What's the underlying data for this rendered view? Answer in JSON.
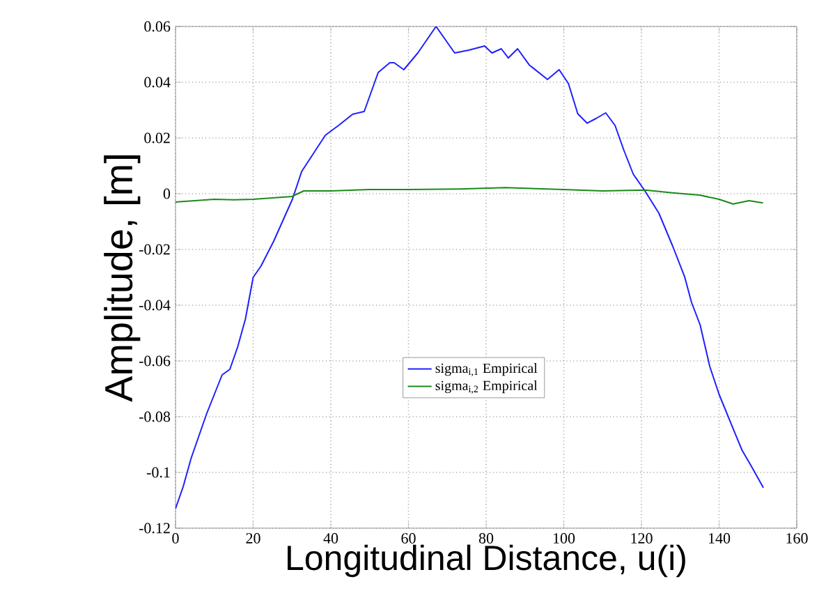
{
  "chart_data": {
    "type": "line",
    "xlabel": "Longitudinal Distance, u(i)",
    "ylabel": "Amplitude, [m]",
    "xlim": [
      0,
      160
    ],
    "ylim": [
      -0.12,
      0.06
    ],
    "xticks": [
      0,
      20,
      40,
      60,
      80,
      100,
      120,
      140,
      160
    ],
    "yticks": [
      -0.12,
      -0.1,
      -0.08,
      -0.06,
      -0.04,
      -0.02,
      0,
      0.02,
      0.04,
      0.06
    ],
    "grid": true,
    "legend": "center",
    "line_style": "solid",
    "marker": "none",
    "series": [
      {
        "name": "sigma$_{i,1}$ Empirical",
        "color": "#1f1fff",
        "x": [
          0,
          2,
          4,
          6,
          8,
          10,
          12,
          14,
          16,
          18,
          20,
          22,
          25.3,
          30.1,
          32.5,
          37.9,
          38.6,
          42,
          45.6,
          48.6,
          52.2,
          55.2,
          56.3,
          58.8,
          62.4,
          67.1,
          71.9,
          75.5,
          79.6,
          81.5,
          83.9,
          85.7,
          88.1,
          91.1,
          95.8,
          98.8,
          101.2,
          103.6,
          106,
          108.3,
          110.8,
          113.2,
          115.5,
          117.9,
          120.9,
          124.5,
          128.1,
          131.1,
          132.9,
          135.1,
          137.6,
          140,
          144.2,
          145.9,
          148.4,
          151.4
        ],
        "values": [
          -0.113,
          -0.105,
          -0.095,
          -0.087,
          -0.079,
          -0.072,
          -0.065,
          -0.063,
          -0.055,
          -0.045,
          -0.03,
          -0.026,
          -0.017,
          -0.002,
          0.008,
          0.0195,
          0.021,
          0.0245,
          0.0285,
          0.0295,
          0.0435,
          0.047,
          0.047,
          0.0445,
          0.0505,
          0.06,
          0.0505,
          0.0515,
          0.053,
          0.0505,
          0.052,
          0.0487,
          0.052,
          0.0462,
          0.041,
          0.0445,
          0.0395,
          0.0287,
          0.0253,
          0.027,
          0.029,
          0.0245,
          0.0155,
          0.007,
          0.001,
          -0.007,
          -0.019,
          -0.0297,
          -0.039,
          -0.047,
          -0.062,
          -0.072,
          -0.0863,
          -0.092,
          -0.098,
          -0.1055
        ]
      },
      {
        "name": "sigma$_{i,2}$ Empirical",
        "color": "#1a8a1a",
        "x": [
          0,
          5,
          10,
          15,
          20,
          25,
          30,
          33,
          40,
          50,
          60,
          73.1,
          85,
          100,
          110,
          121,
          128,
          135,
          140,
          143.6,
          147.7,
          151.3
        ],
        "values": [
          -0.003,
          -0.0025,
          -0.002,
          -0.0022,
          -0.002,
          -0.0015,
          -0.001,
          0.001,
          0.001,
          0.0015,
          0.0015,
          0.0017,
          0.0022,
          0.0015,
          0.001,
          0.0013,
          0.0003,
          -0.0005,
          -0.002,
          -0.0037,
          -0.0025,
          -0.0033
        ]
      }
    ]
  }
}
